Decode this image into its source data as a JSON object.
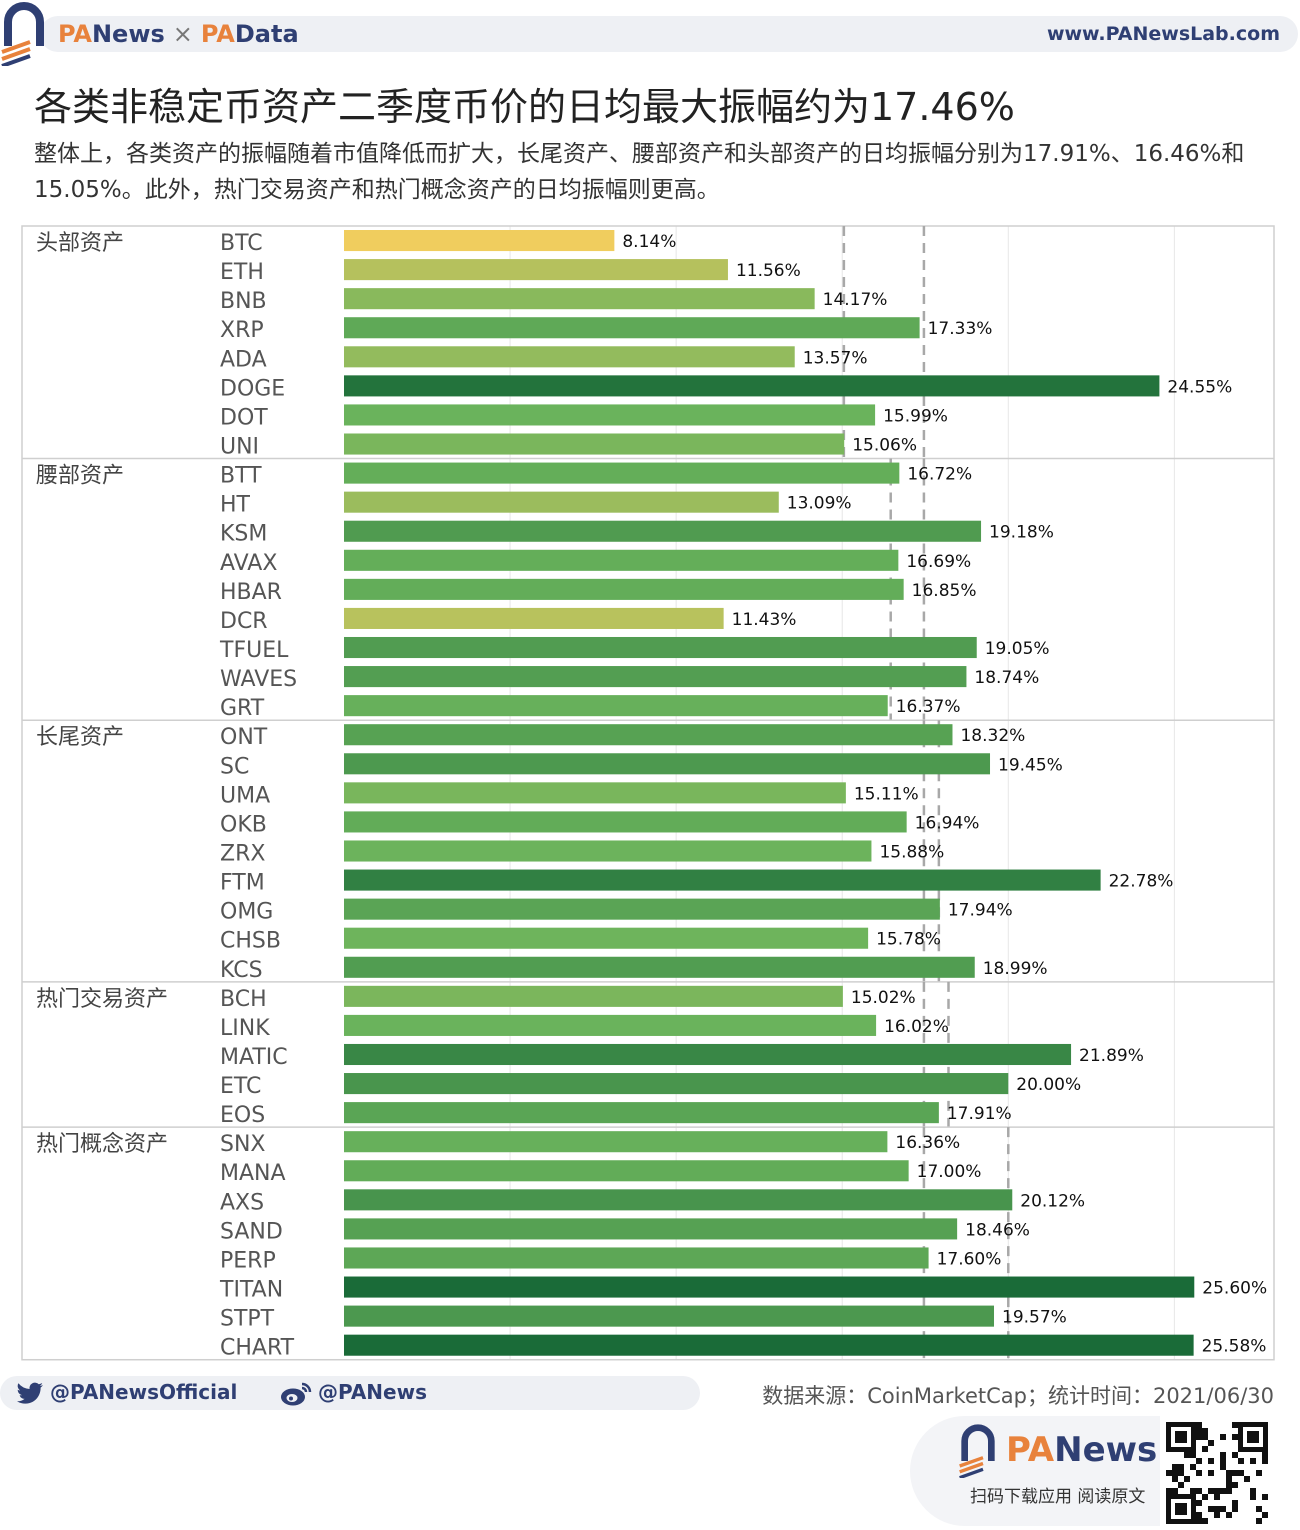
{
  "header": {
    "brand_part1": "PA",
    "brand_part2": "News",
    "separator": "×",
    "brand_part3": "PA",
    "brand_part4": "Data",
    "url": "www.PANewsLab.com"
  },
  "title": "各类非稳定币资产二季度币价的日均最大振幅约为17.46%",
  "subtitle": "整体上，各类资产的振幅随着市值降低而扩大，长尾资产、腰部资产和头部资产的日均振幅分别为17.91%、16.46%和15.05%。此外，热门交易资产和热门概念资产的日均振幅则更高。",
  "chart_data": {
    "type": "bar",
    "orientation": "horizontal",
    "value_format": "percent",
    "xlim": [
      0,
      28
    ],
    "groups": [
      {
        "name": "头部资产",
        "categories": [
          "BTC",
          "ETH",
          "BNB",
          "XRP",
          "ADA",
          "DOGE",
          "DOT",
          "UNI"
        ],
        "values": [
          8.14,
          11.56,
          14.17,
          17.33,
          13.57,
          24.55,
          15.99,
          15.06
        ]
      },
      {
        "name": "腰部资产",
        "categories": [
          "BTT",
          "HT",
          "KSM",
          "AVAX",
          "HBAR",
          "DCR",
          "TFUEL",
          "WAVES",
          "GRT"
        ],
        "values": [
          16.72,
          13.09,
          19.18,
          16.69,
          16.85,
          11.43,
          19.05,
          18.74,
          16.37
        ]
      },
      {
        "name": "长尾资产",
        "categories": [
          "ONT",
          "SC",
          "UMA",
          "OKB",
          "ZRX",
          "FTM",
          "OMG",
          "CHSB",
          "KCS"
        ],
        "values": [
          18.32,
          19.45,
          15.11,
          16.94,
          15.88,
          22.78,
          17.94,
          15.78,
          18.99
        ]
      },
      {
        "name": "热门交易资产",
        "categories": [
          "BCH",
          "LINK",
          "MATIC",
          "ETC",
          "EOS"
        ],
        "values": [
          15.02,
          16.02,
          21.89,
          20.0,
          17.91
        ]
      },
      {
        "name": "热门概念资产",
        "categories": [
          "SNX",
          "MANA",
          "AXS",
          "SAND",
          "PERP",
          "TITAN",
          "STPT",
          "CHART"
        ],
        "values": [
          16.36,
          17.0,
          20.12,
          18.46,
          17.6,
          25.6,
          19.57,
          25.58
        ]
      }
    ],
    "reference_lines": {
      "overall_average": 17.46,
      "group_averages": [
        15.05,
        16.46,
        17.91,
        18.2,
        20.0
      ]
    },
    "color_scale": {
      "low": "#f2cd5e",
      "mid": "#6ab35c",
      "high": "#1a6b38"
    }
  },
  "footer": {
    "twitter": "@PANewsOfficial",
    "weibo": "@PANews",
    "source": "数据来源：CoinMarketCap；统计时间：2021/06/30"
  },
  "promo": {
    "brand_part1": "PA",
    "brand_part2": "News",
    "caption": "扫码下载应用  阅读原文"
  }
}
